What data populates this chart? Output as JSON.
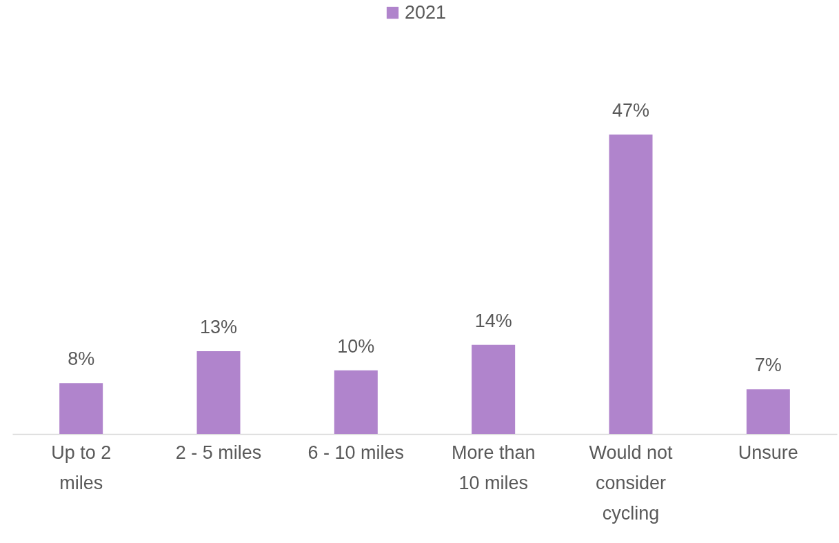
{
  "chart_data": {
    "type": "bar",
    "categories": [
      "Up to 2 miles",
      "2 - 5 miles",
      "6 - 10 miles",
      "More than 10 miles",
      "Would not consider cycling",
      "Unsure"
    ],
    "series": [
      {
        "name": "2021",
        "color": "#b084cc",
        "values": [
          8,
          13,
          10,
          14,
          47,
          7
        ],
        "value_labels": [
          "8%",
          "13%",
          "10%",
          "14%",
          "47%",
          "7%"
        ]
      }
    ],
    "legend": "top",
    "grid": false
  }
}
